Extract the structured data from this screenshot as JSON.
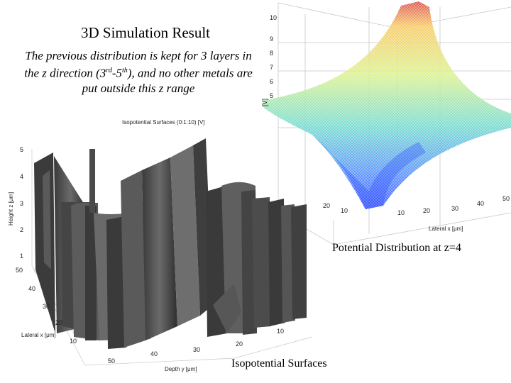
{
  "slide": {
    "title": "3D Simulation Result",
    "subtitle_parts": [
      "The previous distribution is kept for 3 layers in the z direction (3",
      "rd",
      "-5",
      "th",
      "), and no other metals are put  outside this z range"
    ]
  },
  "captions": {
    "potential": "Potential Distribution at z=4",
    "isopotential": "Isopotential Surfaces"
  },
  "isosurface_plot": {
    "title": "Isopotential Surfaces (0:1:10) [V]",
    "z_axis_label": "Height z [μm]",
    "x_axis_label": "Lateral x [μm]",
    "y_axis_label": "Depth y [μm]",
    "z_ticks": [
      "5",
      "4",
      "3",
      "2",
      "1"
    ],
    "x_ticks": [
      "50",
      "40",
      "30",
      "20",
      "10"
    ],
    "y_ticks": [
      "50",
      "40",
      "30",
      "20",
      "10"
    ]
  },
  "surface_plot": {
    "z_axis_label": "[V]",
    "x_axis_label": "Lateral x [μm]",
    "z_ticks": [
      "10",
      "9",
      "8",
      "7",
      "6",
      "5"
    ],
    "x_ticks": [
      "10",
      "20",
      "30",
      "40",
      "50"
    ],
    "y_ticks": [
      "20",
      "10"
    ]
  },
  "colors": {
    "surface_low": "#1f3fff",
    "surface_mid": "#39d0c8",
    "surface_high": "#ffd400",
    "surface_peak": "#d83030",
    "isosurface": "#4a4a4a"
  }
}
